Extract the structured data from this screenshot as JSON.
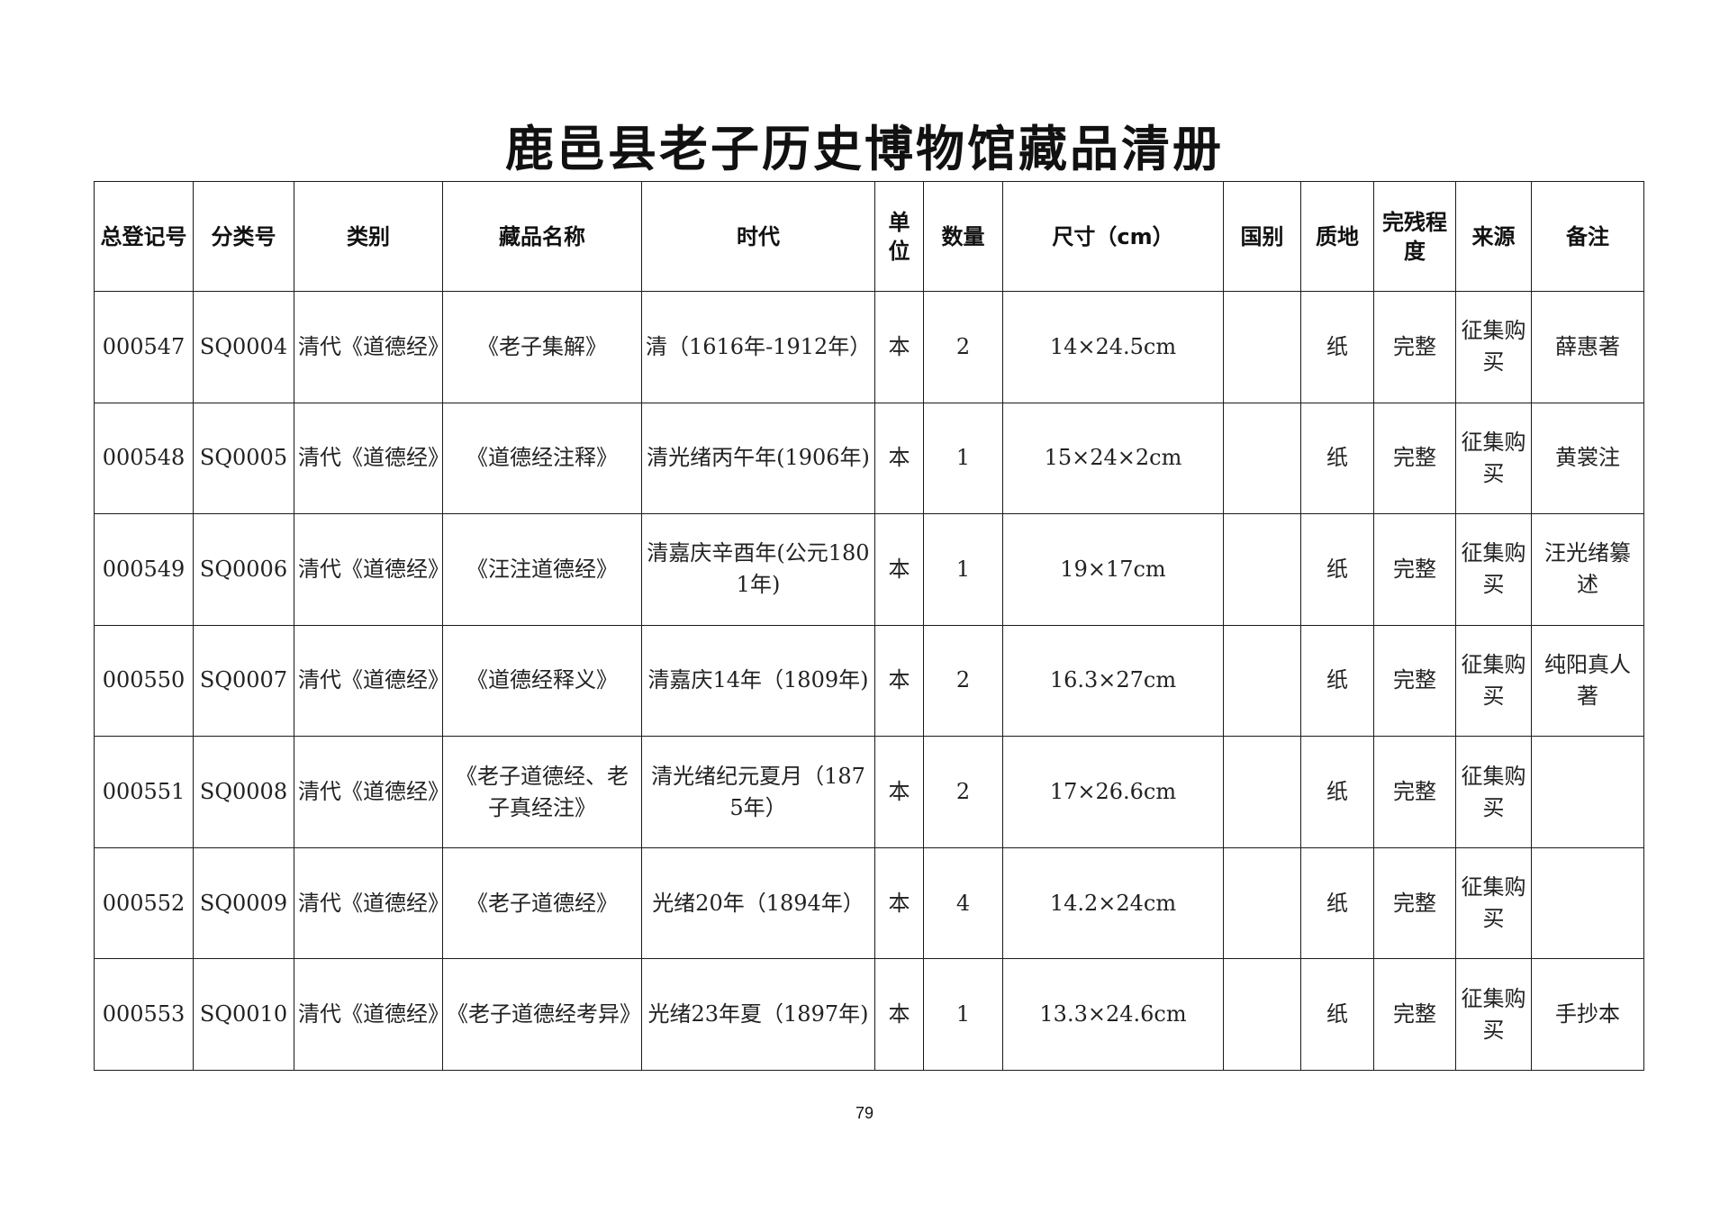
{
  "title": "鹿邑县老子历史博物馆藏品清册",
  "table": {
    "headers": [
      {
        "key": "reg",
        "label": "总登记号"
      },
      {
        "key": "cls",
        "label": "分类号"
      },
      {
        "key": "cat",
        "label": "类别"
      },
      {
        "key": "name",
        "label": "藏品名称"
      },
      {
        "key": "era",
        "label": "时代"
      },
      {
        "key": "unit",
        "label": "单位"
      },
      {
        "key": "qty",
        "label": "数量"
      },
      {
        "key": "size",
        "label": "尺寸（cm）"
      },
      {
        "key": "country",
        "label": "国别"
      },
      {
        "key": "mat",
        "label": "质地"
      },
      {
        "key": "cond",
        "label": "完残程度"
      },
      {
        "key": "src",
        "label": "来源"
      },
      {
        "key": "note",
        "label": "备注"
      }
    ],
    "rows": [
      {
        "reg": "000547",
        "cls": "SQ0004",
        "cat": "清代《道德经》",
        "name": "《老子集解》",
        "era": "清（1616年-1912年）",
        "unit": "本",
        "qty": "2",
        "size": "14×24.5cm",
        "country": "",
        "mat": "纸",
        "cond": "完整",
        "src": "征集购买",
        "note": "薛惠著"
      },
      {
        "reg": "000548",
        "cls": "SQ0005",
        "cat": "清代《道德经》",
        "name": "《道德经注释》",
        "era": "清光绪丙午年(1906年)",
        "unit": "本",
        "qty": "1",
        "size": "15×24×2cm",
        "country": "",
        "mat": "纸",
        "cond": "完整",
        "src": "征集购买",
        "note": "黄裳注"
      },
      {
        "reg": "000549",
        "cls": "SQ0006",
        "cat": "清代《道德经》",
        "name": "《汪注道德经》",
        "era": "清嘉庆辛酉年(公元1801年)",
        "unit": "本",
        "qty": "1",
        "size": "19×17cm",
        "country": "",
        "mat": "纸",
        "cond": "完整",
        "src": "征集购买",
        "note": "汪光绪纂述"
      },
      {
        "reg": "000550",
        "cls": "SQ0007",
        "cat": "清代《道德经》",
        "name": "《道德经释义》",
        "era": "清嘉庆14年（1809年)",
        "unit": "本",
        "qty": "2",
        "size": "16.3×27cm",
        "country": "",
        "mat": "纸",
        "cond": "完整",
        "src": "征集购买",
        "note": "纯阳真人著"
      },
      {
        "reg": "000551",
        "cls": "SQ0008",
        "cat": "清代《道德经》",
        "name": "《老子道德经、老子真经注》",
        "era": "清光绪纪元夏月（1875年）",
        "unit": "本",
        "qty": "2",
        "size": "17×26.6cm",
        "country": "",
        "mat": "纸",
        "cond": "完整",
        "src": "征集购买",
        "note": ""
      },
      {
        "reg": "000552",
        "cls": "SQ0009",
        "cat": "清代《道德经》",
        "name": "《老子道德经》",
        "era": "光绪20年（1894年）",
        "unit": "本",
        "qty": "4",
        "size": "14.2×24cm",
        "country": "",
        "mat": "纸",
        "cond": "完整",
        "src": "征集购买",
        "note": ""
      },
      {
        "reg": "000553",
        "cls": "SQ0010",
        "cat": "清代《道德经》",
        "name": "《老子道德经考异》",
        "era": "光绪23年夏（1897年)",
        "unit": "本",
        "qty": "1",
        "size": "13.3×24.6cm",
        "country": "",
        "mat": "纸",
        "cond": "完整",
        "src": "征集购买",
        "note": "手抄本"
      }
    ]
  },
  "page_number": "79"
}
